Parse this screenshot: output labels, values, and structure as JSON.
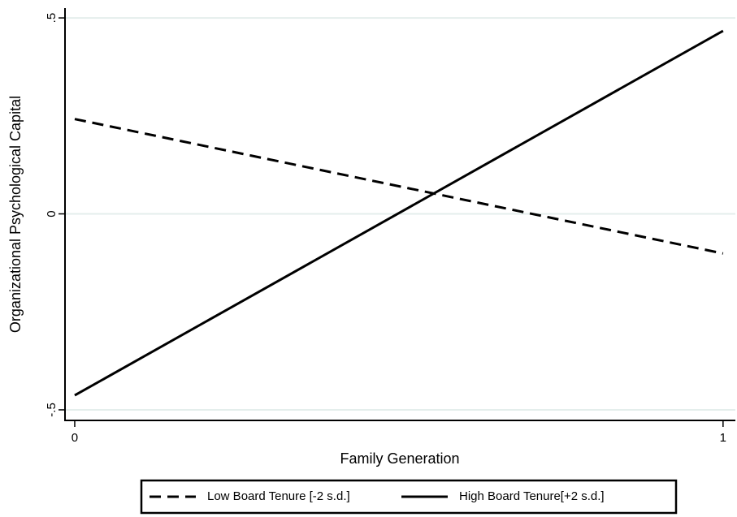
{
  "chart_data": {
    "type": "line",
    "xlabel": "Family Generation",
    "ylabel": "Organizational Psychological Capital",
    "x": [
      0,
      1
    ],
    "series": [
      {
        "name": "Low Board Tenure [-2 s.d.]",
        "color": "#000000",
        "dash": true,
        "values": [
          0.242,
          -0.101
        ]
      },
      {
        "name": "High Board Tenure[+2 s.d.]",
        "color": "#000000",
        "dash": false,
        "values": [
          -0.463,
          0.467
        ]
      }
    ],
    "xlim": [
      -0.015,
      1.019
    ],
    "xticks": [
      0,
      1
    ],
    "ylim": [
      -0.527,
      0.525
    ],
    "yticks": [
      {
        "value": -0.5,
        "label": "-.5"
      },
      0,
      {
        "value": 0.5,
        "label": ".5"
      }
    ],
    "grid": true,
    "grid_color": "#e4eeec",
    "legend": "bottom"
  }
}
